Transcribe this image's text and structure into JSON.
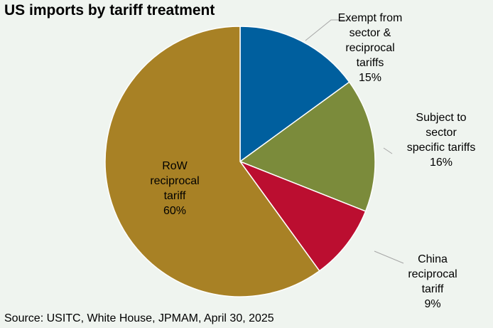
{
  "chart_data": {
    "type": "pie",
    "title": "US imports by tariff treatment",
    "source": "Source: USITC, White House, JPMAM, April 30, 2025",
    "slices": [
      {
        "lines": [
          "Exempt from",
          "sector &",
          "reciprocal",
          "tariffs"
        ],
        "pct_label": "15%",
        "value": 15,
        "color": "#005f9e"
      },
      {
        "lines": [
          "Subject to",
          "sector",
          "specific tariffs"
        ],
        "pct_label": "16%",
        "value": 16,
        "color": "#7b8b3b"
      },
      {
        "lines": [
          "China",
          "reciprocal",
          "tariff"
        ],
        "pct_label": "9%",
        "value": 9,
        "color": "#bb0e30"
      },
      {
        "lines": [
          "RoW",
          "reciprocal",
          "tariff"
        ],
        "pct_label": "60%",
        "value": 60,
        "color": "#a88125"
      }
    ],
    "start_angle": "12 o'clock",
    "direction": "clockwise",
    "legend": "none"
  }
}
